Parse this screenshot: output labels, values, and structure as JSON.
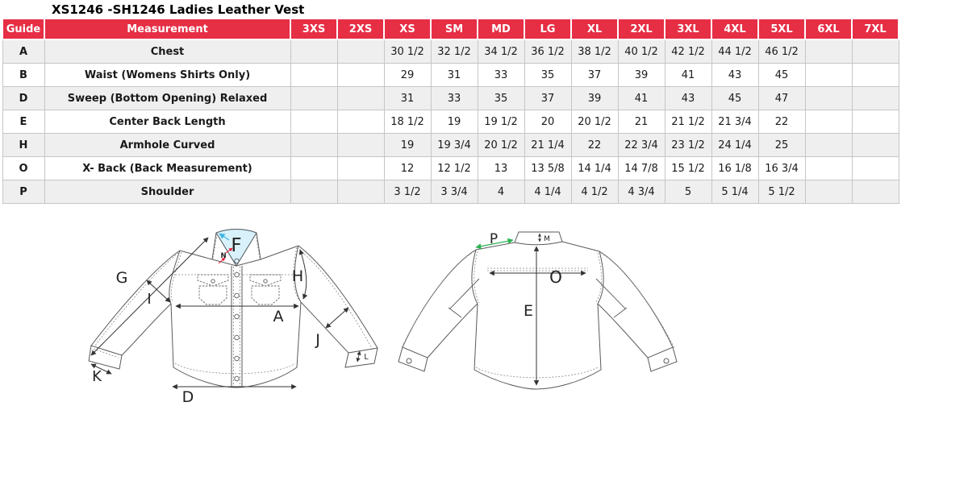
{
  "title": "XS1246 -SH1246 Ladies Leather Vest",
  "size_chart": {
    "columns": [
      "Guide",
      "Measurement",
      "3XS",
      "2XS",
      "XS",
      "SM",
      "MD",
      "LG",
      "XL",
      "2XL",
      "3XL",
      "4XL",
      "5XL",
      "6XL",
      "7XL"
    ],
    "rows": [
      {
        "guide": "A",
        "measurement": "Chest",
        "values": [
          "",
          "",
          "30 1/2",
          "32 1/2",
          "34 1/2",
          "36 1/2",
          "38 1/2",
          "40 1/2",
          "42 1/2",
          "44 1/2",
          "46 1/2",
          "",
          ""
        ]
      },
      {
        "guide": "B",
        "measurement": "Waist (Womens Shirts Only)",
        "values": [
          "",
          "",
          "29",
          "31",
          "33",
          "35",
          "37",
          "39",
          "41",
          "43",
          "45",
          "",
          ""
        ]
      },
      {
        "guide": "D",
        "measurement": "Sweep (Bottom Opening)  Relaxed",
        "values": [
          "",
          "",
          "31",
          "33",
          "35",
          "37",
          "39",
          "41",
          "43",
          "45",
          "47",
          "",
          ""
        ]
      },
      {
        "guide": "E",
        "measurement": "Center Back Length",
        "values": [
          "",
          "",
          "18 1/2",
          "19",
          "19 1/2",
          "20",
          "20 1/2",
          "21",
          "21 1/2",
          "21 3/4",
          "22",
          "",
          ""
        ]
      },
      {
        "guide": "H",
        "measurement": "Armhole Curved",
        "values": [
          "",
          "",
          "19",
          "19 3/4",
          "20 1/2",
          "21 1/4",
          "22",
          "22 3/4",
          "23 1/2",
          "24 1/4",
          "25",
          "",
          ""
        ]
      },
      {
        "guide": "O",
        "measurement": "X- Back (Back Measurement)",
        "values": [
          "",
          "",
          "12",
          "12 1/2",
          "13",
          "13 5/8",
          "14 1/4",
          "14 7/8",
          "15 1/2",
          "16 1/8",
          "16 3/4",
          "",
          ""
        ]
      },
      {
        "guide": "P",
        "measurement": "Shoulder",
        "values": [
          "",
          "",
          "3 1/2",
          "3 3/4",
          "4",
          "4 1/4",
          "4 1/2",
          "4 3/4",
          "5",
          "5 1/4",
          "5 1/2",
          "",
          ""
        ]
      }
    ]
  },
  "diagram": {
    "front": {
      "F": "F",
      "N": "N",
      "G": "G",
      "I": "I",
      "H": "H",
      "A": "A",
      "J": "J",
      "K": "K",
      "D": "D",
      "L": "L"
    },
    "back": {
      "P": "P",
      "M": "M",
      "O": "O",
      "E": "E"
    }
  },
  "colors": {
    "header_bg": "#e62e45",
    "stripe": "#efefef",
    "cell_border": "#c6c6c6",
    "label_cyan": "#3db5e6",
    "label_red": "#e8112d",
    "label_green": "#2eb353",
    "line": "#5a5a5a"
  }
}
